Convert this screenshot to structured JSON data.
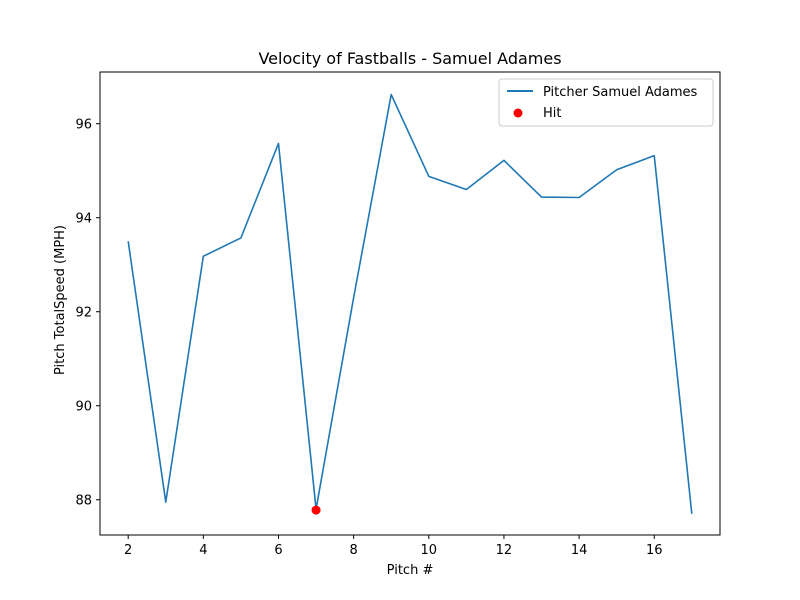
{
  "chart_data": {
    "type": "line",
    "title": "Velocity of Fastballs - Samuel Adames",
    "xlabel": "Pitch #",
    "ylabel": "Pitch TotalSpeed (MPH)",
    "xlim": [
      1.25,
      17.75
    ],
    "ylim": [
      87.25,
      97.1
    ],
    "xticks": [
      2,
      4,
      6,
      8,
      10,
      12,
      14,
      16
    ],
    "yticks": [
      88,
      90,
      92,
      94,
      96
    ],
    "grid": false,
    "legend_position": "top-right",
    "series": [
      {
        "name": "Pitcher Samuel Adames",
        "type": "line",
        "color": "#1f77b4",
        "x": [
          2,
          3,
          4,
          5,
          6,
          7,
          8,
          9,
          10,
          11,
          12,
          13,
          14,
          15,
          16,
          17
        ],
        "y": [
          93.5,
          87.95,
          93.18,
          93.57,
          95.58,
          87.8,
          92.3,
          96.62,
          94.88,
          94.6,
          95.22,
          94.44,
          94.43,
          95.02,
          95.32,
          87.7
        ]
      },
      {
        "name": "Hit",
        "type": "scatter",
        "color": "#ff0000",
        "x": [
          7
        ],
        "y": [
          87.78
        ]
      }
    ]
  }
}
